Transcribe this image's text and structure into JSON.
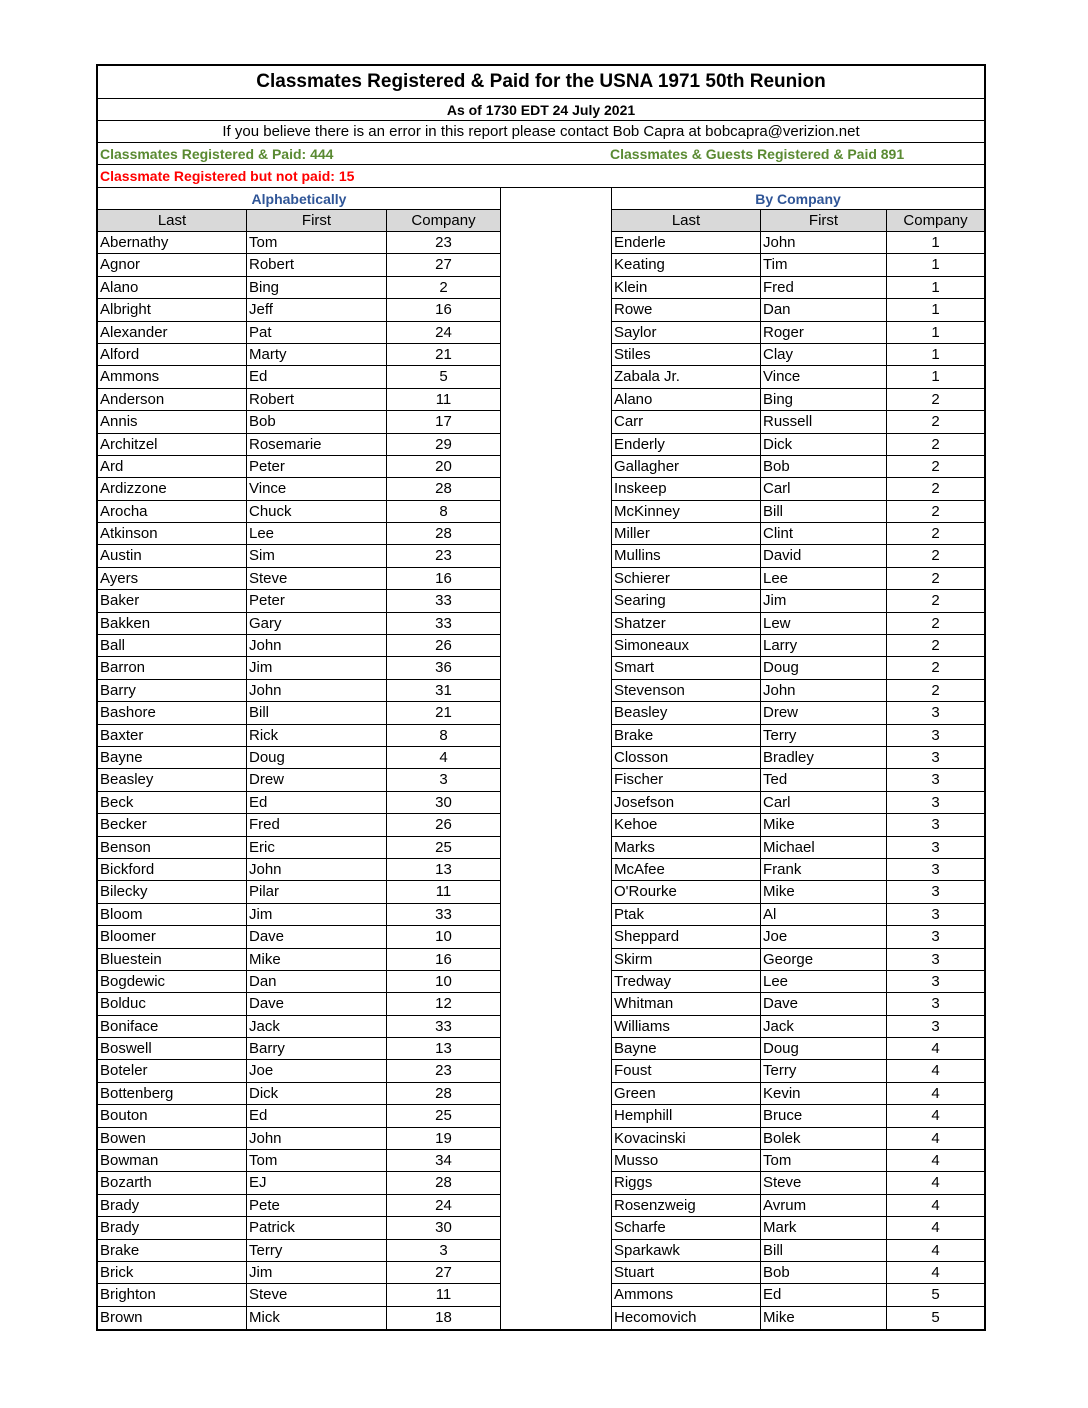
{
  "title": "Classmates Registered & Paid for the USNA 1971 50th Reunion",
  "as_of": "As of 1730 EDT 24 July 2021",
  "error_note": "If you believe there is an error in this report please contact Bob Capra at bobcapra@verizion.net",
  "registered_paid": "Classmates Registered & Paid: 444",
  "guests_paid": "Classmates & Guests Registered & Paid  891",
  "not_paid": "Classmate Registered but not paid: 15",
  "colors": {
    "green": "#5a8a32",
    "red": "#ff0000",
    "blue": "#2f5597",
    "header_bg": "#d9d9d9"
  },
  "left": {
    "heading": "Alphabetically",
    "columns": [
      "Last",
      "First",
      "Company"
    ],
    "rows": [
      [
        "Abernathy",
        "Tom",
        "23"
      ],
      [
        "Agnor",
        "Robert",
        "27"
      ],
      [
        "Alano",
        "Bing",
        "2"
      ],
      [
        "Albright",
        "Jeff",
        "16"
      ],
      [
        "Alexander",
        "Pat",
        "24"
      ],
      [
        "Alford",
        "Marty",
        "21"
      ],
      [
        "Ammons",
        "Ed",
        "5"
      ],
      [
        "Anderson",
        "Robert",
        "11"
      ],
      [
        "Annis",
        "Bob",
        "17"
      ],
      [
        "Architzel",
        "Rosemarie",
        "29"
      ],
      [
        "Ard",
        "Peter",
        "20"
      ],
      [
        "Ardizzone",
        "Vince",
        "28"
      ],
      [
        "Arocha",
        "Chuck",
        "8"
      ],
      [
        "Atkinson",
        "Lee",
        "28"
      ],
      [
        "Austin",
        "Sim",
        "23"
      ],
      [
        "Ayers",
        "Steve",
        "16"
      ],
      [
        "Baker",
        "Peter",
        "33"
      ],
      [
        "Bakken",
        "Gary",
        "33"
      ],
      [
        "Ball",
        "John",
        "26"
      ],
      [
        "Barron",
        "Jim",
        "36"
      ],
      [
        "Barry",
        "John",
        "31"
      ],
      [
        "Bashore",
        "Bill",
        "21"
      ],
      [
        "Baxter",
        "Rick",
        "8"
      ],
      [
        "Bayne",
        "Doug",
        "4"
      ],
      [
        "Beasley",
        "Drew",
        "3"
      ],
      [
        "Beck",
        "Ed",
        "30"
      ],
      [
        "Becker",
        "Fred",
        "26"
      ],
      [
        "Benson",
        "Eric",
        "25"
      ],
      [
        "Bickford",
        "John",
        "13"
      ],
      [
        "Bilecky",
        "Pilar",
        "11"
      ],
      [
        "Bloom",
        "Jim",
        "33"
      ],
      [
        "Bloomer",
        "Dave",
        "10"
      ],
      [
        "Bluestein",
        "Mike",
        "16"
      ],
      [
        "Bogdewic",
        "Dan",
        "10"
      ],
      [
        "Bolduc",
        "Dave",
        "12"
      ],
      [
        "Boniface",
        "Jack",
        "33"
      ],
      [
        "Boswell",
        "Barry",
        "13"
      ],
      [
        "Boteler",
        "Joe",
        "23"
      ],
      [
        "Bottenberg",
        "Dick",
        "28"
      ],
      [
        "Bouton",
        "Ed",
        "25"
      ],
      [
        "Bowen",
        "John",
        "19"
      ],
      [
        "Bowman",
        "Tom",
        "34"
      ],
      [
        "Bozarth",
        "EJ",
        "28"
      ],
      [
        "Brady",
        "Pete",
        "24"
      ],
      [
        "Brady",
        "Patrick",
        "30"
      ],
      [
        "Brake",
        "Terry",
        "3"
      ],
      [
        "Brick",
        "Jim",
        "27"
      ],
      [
        "Brighton",
        "Steve",
        "11"
      ],
      [
        "Brown",
        "Mick",
        "18"
      ]
    ]
  },
  "right": {
    "heading": "By Company",
    "columns": [
      "Last",
      "First",
      "Company"
    ],
    "rows": [
      [
        "Enderle",
        "John",
        "1"
      ],
      [
        "Keating",
        "Tim",
        "1"
      ],
      [
        "Klein",
        "Fred",
        "1"
      ],
      [
        "Rowe",
        "Dan",
        "1"
      ],
      [
        "Saylor",
        "Roger",
        "1"
      ],
      [
        "Stiles",
        "Clay",
        "1"
      ],
      [
        "Zabala Jr.",
        "Vince",
        "1"
      ],
      [
        "Alano",
        "Bing",
        "2"
      ],
      [
        "Carr",
        "Russell",
        "2"
      ],
      [
        "Enderly",
        "Dick",
        "2"
      ],
      [
        "Gallagher",
        "Bob",
        "2"
      ],
      [
        "Inskeep",
        "Carl",
        "2"
      ],
      [
        "McKinney",
        "Bill",
        "2"
      ],
      [
        "Miller",
        "Clint",
        "2"
      ],
      [
        "Mullins",
        "David",
        "2"
      ],
      [
        "Schierer",
        "Lee",
        "2"
      ],
      [
        "Searing",
        "Jim",
        "2"
      ],
      [
        "Shatzer",
        "Lew",
        "2"
      ],
      [
        "Simoneaux",
        "Larry",
        "2"
      ],
      [
        "Smart",
        "Doug",
        "2"
      ],
      [
        "Stevenson",
        "John",
        "2"
      ],
      [
        "Beasley",
        "Drew",
        "3"
      ],
      [
        "Brake",
        "Terry",
        "3"
      ],
      [
        "Closson",
        "Bradley",
        "3"
      ],
      [
        "Fischer",
        "Ted",
        "3"
      ],
      [
        "Josefson",
        "Carl",
        "3"
      ],
      [
        "Kehoe",
        "Mike",
        "3"
      ],
      [
        "Marks",
        "Michael",
        "3"
      ],
      [
        "McAfee",
        "Frank",
        "3"
      ],
      [
        "O'Rourke",
        "Mike",
        "3"
      ],
      [
        "Ptak",
        "Al",
        "3"
      ],
      [
        "Sheppard",
        "Joe",
        "3"
      ],
      [
        "Skirm",
        "George",
        "3"
      ],
      [
        "Tredway",
        "Lee",
        "3"
      ],
      [
        "Whitman",
        "Dave",
        "3"
      ],
      [
        "Williams",
        "Jack",
        "3"
      ],
      [
        "Bayne",
        "Doug",
        "4"
      ],
      [
        "Foust",
        "Terry",
        "4"
      ],
      [
        "Green",
        "Kevin",
        "4"
      ],
      [
        "Hemphill",
        "Bruce",
        "4"
      ],
      [
        "Kovacinski",
        "Bolek",
        "4"
      ],
      [
        "Musso",
        "Tom",
        "4"
      ],
      [
        "Riggs",
        "Steve",
        "4"
      ],
      [
        "Rosenzweig",
        "Avrum",
        "4"
      ],
      [
        "Scharfe",
        "Mark",
        "4"
      ],
      [
        "Sparkawk",
        "Bill",
        "4"
      ],
      [
        "Stuart",
        "Bob",
        "4"
      ],
      [
        "Ammons",
        "Ed",
        "5"
      ],
      [
        "Hecomovich",
        "Mike",
        "5"
      ]
    ]
  }
}
